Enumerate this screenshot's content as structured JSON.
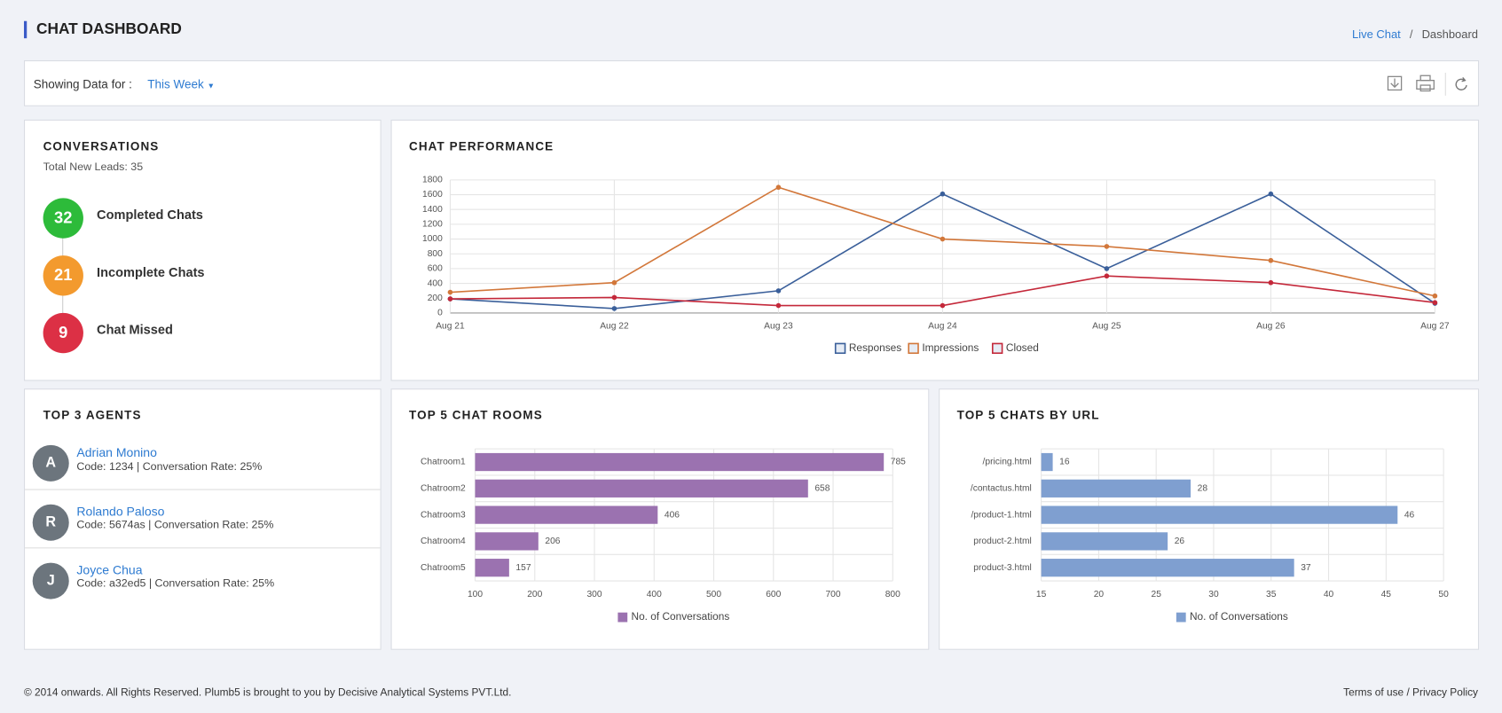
{
  "header": {
    "title": "CHAT DASHBOARD",
    "breadcrumb": {
      "link": "Live Chat",
      "separator": "/",
      "current": "Dashboard"
    }
  },
  "filter": {
    "label": "Showing Data for :",
    "value": "This Week"
  },
  "conversations": {
    "title": "CONVERSATIONS",
    "subtitle": "Total New Leads: 35",
    "items": [
      {
        "count": 32,
        "label": "Completed Chats",
        "color": "#2dbb3a"
      },
      {
        "count": 21,
        "label": "Incomplete Chats",
        "color": "#f39a2e"
      },
      {
        "count": 9,
        "label": "Chat Missed",
        "color": "#dc3045"
      }
    ]
  },
  "agents": {
    "title": "TOP 3 AGENTS",
    "items": [
      {
        "initial": "A",
        "name": "Adrian Monino",
        "details": "Code: 1234 | Conversation Rate: 25%"
      },
      {
        "initial": "R",
        "name": "Rolando Paloso",
        "details": "Code: 5674as | Conversation Rate: 25%"
      },
      {
        "initial": "J",
        "name": "Joyce Chua",
        "details": "Code: a32ed5 | Conversation Rate: 25%"
      }
    ]
  },
  "chart_data": [
    {
      "type": "line",
      "title": "CHAT PERFORMANCE",
      "categories": [
        "Aug 21",
        "Aug 22",
        "Aug 23",
        "Aug 24",
        "Aug 25",
        "Aug 26",
        "Aug 27"
      ],
      "series": [
        {
          "name": "Responses",
          "color": "#3a5f9a",
          "values": [
            190,
            60,
            300,
            1610,
            600,
            1610,
            130
          ]
        },
        {
          "name": "Impressions",
          "color": "#d2773a",
          "values": [
            280,
            410,
            1700,
            1000,
            900,
            710,
            230
          ]
        },
        {
          "name": "Closed",
          "color": "#c4283a",
          "values": [
            190,
            210,
            100,
            100,
            500,
            410,
            140
          ]
        }
      ],
      "ylim": [
        0,
        1800
      ],
      "yticks": [
        0,
        200,
        400,
        600,
        800,
        1000,
        1200,
        1400,
        1600,
        1800
      ],
      "grid": true,
      "legend": "bottom"
    },
    {
      "type": "bar",
      "orientation": "horizontal",
      "title": "TOP 5 CHAT ROOMS",
      "categories": [
        "Chatroom1",
        "Chatroom2",
        "Chatroom3",
        "Chatroom4",
        "Chatroom5"
      ],
      "series": [
        {
          "name": "No. of Conversations",
          "color": "#9b72b0",
          "values": [
            785,
            658,
            406,
            206,
            157
          ]
        }
      ],
      "xlim": [
        100,
        800
      ],
      "xticks": [
        100,
        200,
        300,
        400,
        500,
        600,
        700,
        800
      ],
      "grid": true,
      "legend": "bottom"
    },
    {
      "type": "bar",
      "orientation": "horizontal",
      "title": "TOP 5 CHATS BY URL",
      "categories": [
        "/pricing.html",
        "/contactus.html",
        "/product-1.html",
        "product-2.html",
        "product-3.html"
      ],
      "series": [
        {
          "name": "No. of Conversations",
          "color": "#7f9fd0",
          "values": [
            16,
            28,
            46,
            26,
            37
          ]
        }
      ],
      "xlim": [
        15,
        50
      ],
      "xticks": [
        15,
        20,
        25,
        30,
        35,
        40,
        45,
        50
      ],
      "grid": true,
      "legend": "bottom"
    }
  ],
  "footer": {
    "copyright": "© 2014 onwards. All Rights Reserved. Plumb5 is brought to you by Decisive Analytical Systems PVT.Ltd.",
    "links": "Terms of use / Privacy Policy"
  }
}
